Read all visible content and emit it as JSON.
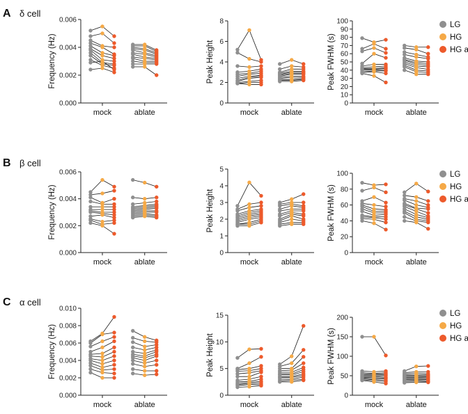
{
  "colors": {
    "LG": "#8f8f8f",
    "HG": "#f5a947",
    "HG_ablate": "#ed5a2b"
  },
  "legend": [
    "LG",
    "HG",
    "HG ablate"
  ],
  "categories": [
    "mock",
    "ablate"
  ],
  "rows": [
    {
      "letter": "A",
      "title": "δ cell",
      "panels": [
        {
          "ylabel": "Frequency (Hz)",
          "ylim": [
            0,
            0.006
          ],
          "yticks": [
            0,
            0.002,
            0.004,
            0.006
          ],
          "ytick_labels": [
            "0.000",
            "0.002",
            "0.004",
            "0.006"
          ],
          "mock": {
            "LG": [
              0.0052,
              0.0048,
              0.0045,
              0.0043,
              0.0041,
              0.0039,
              0.0038,
              0.0036,
              0.0034,
              0.0031,
              0.0029,
              0.0024
            ],
            "HG": [
              0.0055,
              0.005,
              0.0041,
              0.004,
              0.0036,
              0.0034,
              0.0031,
              0.0029,
              0.0028,
              0.0027,
              0.003,
              0.0025
            ],
            "HG_ablate": [
              0.0048,
              0.0043,
              0.004,
              0.0035,
              0.0034,
              0.0032,
              0.003,
              0.0028,
              0.0027,
              0.0025,
              0.0024,
              0.0022
            ]
          },
          "ablate": {
            "LG": [
              0.0042,
              0.0041,
              0.004,
              0.0039,
              0.0038,
              0.0036,
              0.0035,
              0.0033,
              0.0032,
              0.003,
              0.0028,
              0.0026
            ],
            "HG": [
              0.0042,
              0.0041,
              0.0039,
              0.0038,
              0.0036,
              0.0035,
              0.0033,
              0.0032,
              0.003,
              0.0029,
              0.0028,
              0.0026
            ],
            "HG_ablate": [
              0.0038,
              0.0037,
              0.0036,
              0.0035,
              0.0034,
              0.0033,
              0.0032,
              0.0031,
              0.003,
              0.0029,
              0.0028,
              0.002
            ]
          }
        },
        {
          "ylabel": "Peak Height",
          "ylim": [
            0,
            8
          ],
          "yticks": [
            0,
            2,
            4,
            6,
            8
          ],
          "ytick_labels": [
            "0",
            "2",
            "4",
            "6",
            "8"
          ],
          "mock": {
            "LG": [
              5.2,
              4.9,
              3.6,
              3.0,
              2.8,
              2.6,
              2.4,
              2.2,
              2.1,
              2.0,
              1.9,
              1.9
            ],
            "HG": [
              7.1,
              4.3,
              3.5,
              3.1,
              2.9,
              2.8,
              2.6,
              2.5,
              2.4,
              2.1,
              2.0,
              1.8
            ],
            "HG_ablate": [
              4.2,
              4.0,
              3.6,
              3.3,
              3.1,
              2.9,
              2.7,
              2.6,
              2.5,
              2.2,
              2.0,
              1.8
            ]
          },
          "ablate": {
            "LG": [
              3.8,
              3.3,
              3.0,
              2.9,
              2.8,
              2.7,
              2.6,
              2.5,
              2.4,
              2.3,
              2.2,
              2.1
            ],
            "HG": [
              4.2,
              3.6,
              3.3,
              3.1,
              3.0,
              2.9,
              2.8,
              2.6,
              2.5,
              2.3,
              2.2,
              2.1
            ],
            "HG_ablate": [
              3.8,
              3.5,
              3.3,
              3.1,
              3.0,
              2.9,
              2.8,
              2.6,
              2.5,
              2.4,
              2.3,
              2.2
            ]
          }
        },
        {
          "ylabel": "Peak FWHM (s)",
          "ylim": [
            0,
            100
          ],
          "yticks": [
            0,
            10,
            20,
            30,
            40,
            50,
            60,
            70,
            80,
            90,
            100
          ],
          "ytick_labels": [
            "0",
            "10",
            "20",
            "30",
            "40",
            "50",
            "60",
            "70",
            "80",
            "90",
            "100"
          ],
          "mock": {
            "LG": [
              79,
              66,
              63,
              48,
              45,
              43,
              42,
              41,
              40,
              38,
              37,
              36
            ],
            "HG": [
              74,
              72,
              67,
              60,
              47,
              44,
              42,
              41,
              40,
              39,
              38,
              33
            ],
            "HG_ablate": [
              77,
              66,
              61,
              55,
              47,
              45,
              43,
              42,
              40,
              39,
              36,
              25
            ]
          },
          "ablate": {
            "LG": [
              70,
              67,
              62,
              59,
              55,
              53,
              52,
              50,
              48,
              46,
              44,
              40
            ],
            "HG": [
              68,
              65,
              59,
              56,
              51,
              49,
              47,
              45,
              43,
              40,
              38,
              35
            ],
            "HG_ablate": [
              68,
              60,
              56,
              54,
              50,
              48,
              46,
              44,
              41,
              39,
              37,
              35
            ]
          }
        }
      ]
    },
    {
      "letter": "B",
      "title": "β cell",
      "panels": [
        {
          "ylabel": "Frequency (Hz)",
          "ylim": [
            0,
            0.006
          ],
          "yticks": [
            0,
            0.002,
            0.004,
            0.006
          ],
          "ytick_labels": [
            "0.000",
            "0.002",
            "0.004",
            "0.006"
          ],
          "mock": {
            "LG": [
              0.0045,
              0.0043,
              0.0041,
              0.0038,
              0.0034,
              0.0032,
              0.0031,
              0.003,
              0.0027,
              0.0025,
              0.0024,
              0.0022
            ],
            "HG": [
              0.0054,
              0.0044,
              0.0037,
              0.0036,
              0.0034,
              0.0032,
              0.003,
              0.0029,
              0.0028,
              0.0023,
              0.0021,
              0.002
            ],
            "HG_ablate": [
              0.0049,
              0.0046,
              0.004,
              0.0036,
              0.0034,
              0.0032,
              0.003,
              0.0028,
              0.0026,
              0.0024,
              0.0022,
              0.0014
            ]
          },
          "ablate": {
            "LG": [
              0.0054,
              0.0041,
              0.0036,
              0.0034,
              0.0033,
              0.0032,
              0.0031,
              0.003,
              0.0029,
              0.0028,
              0.0027,
              0.0026
            ],
            "HG": [
              0.0052,
              0.004,
              0.0037,
              0.0035,
              0.0034,
              0.0033,
              0.0032,
              0.0031,
              0.003,
              0.0029,
              0.0028,
              0.0027
            ],
            "HG_ablate": [
              0.0049,
              0.0041,
              0.0038,
              0.0036,
              0.0035,
              0.0034,
              0.0033,
              0.0031,
              0.003,
              0.0028,
              0.0027,
              0.0026
            ]
          }
        },
        {
          "ylabel": "Peak Height",
          "ylim": [
            0,
            5
          ],
          "yticks": [
            0,
            1,
            2,
            3,
            4,
            5
          ],
          "ytick_labels": [
            "0",
            "1",
            "2",
            "3",
            "4",
            "5"
          ],
          "mock": {
            "LG": [
              2.8,
              2.6,
              2.5,
              2.3,
              2.2,
              2.1,
              2.0,
              1.9,
              1.8,
              1.7,
              1.7,
              1.6
            ],
            "HG": [
              4.2,
              2.9,
              2.7,
              2.5,
              2.4,
              2.3,
              2.2,
              2.1,
              2.0,
              1.8,
              1.7,
              1.6
            ],
            "HG_ablate": [
              3.4,
              3.0,
              2.8,
              2.6,
              2.5,
              2.4,
              2.3,
              2.2,
              2.1,
              2.0,
              1.9,
              1.8
            ]
          },
          "ablate": {
            "LG": [
              3.0,
              2.9,
              2.8,
              2.6,
              2.5,
              2.3,
              2.2,
              2.0,
              1.9,
              1.8,
              1.7,
              1.6
            ],
            "HG": [
              3.2,
              3.0,
              2.9,
              2.8,
              2.6,
              2.5,
              2.4,
              2.3,
              2.2,
              2.0,
              1.8,
              1.7
            ],
            "HG_ablate": [
              3.5,
              3.0,
              2.8,
              2.7,
              2.6,
              2.5,
              2.3,
              2.2,
              2.0,
              1.9,
              1.8,
              1.7
            ]
          }
        },
        {
          "ylabel": "Peak FWHM (s)",
          "ylim": [
            0,
            100
          ],
          "yticks": [
            0,
            20,
            40,
            60,
            80,
            100
          ],
          "ytick_labels": [
            "0",
            "20",
            "40",
            "60",
            "80",
            "100"
          ],
          "mock": {
            "LG": [
              88,
              78,
              65,
              62,
              60,
              58,
              55,
              52,
              47,
              45,
              43,
              40
            ],
            "HG": [
              85,
              82,
              70,
              60,
              55,
              52,
              50,
              47,
              45,
              44,
              42,
              37
            ],
            "HG_ablate": [
              86,
              76,
              63,
              58,
              54,
              52,
              50,
              48,
              45,
              42,
              38,
              29
            ]
          },
          "ablate": {
            "LG": [
              76,
              72,
              68,
              66,
              62,
              60,
              58,
              55,
              52,
              50,
              45,
              40
            ],
            "HG": [
              87,
              70,
              65,
              60,
              56,
              55,
              52,
              48,
              45,
              42,
              40,
              38
            ],
            "HG_ablate": [
              77,
              65,
              60,
              57,
              55,
              50,
              46,
              44,
              42,
              40,
              38,
              30
            ]
          }
        }
      ]
    },
    {
      "letter": "C",
      "title": "α cell",
      "panels": [
        {
          "ylabel": "Frequency (Hz)",
          "ylim": [
            0,
            0.01
          ],
          "yticks": [
            0,
            0.002,
            0.004,
            0.006,
            0.008,
            0.01
          ],
          "ytick_labels": [
            "0.000",
            "0.002",
            "0.004",
            "0.006",
            "0.008",
            "0.010"
          ],
          "mock": {
            "LG": [
              0.0062,
              0.006,
              0.0056,
              0.005,
              0.0047,
              0.0045,
              0.0042,
              0.004,
              0.0037,
              0.0034,
              0.003,
              0.0026
            ],
            "HG": [
              0.0071,
              0.007,
              0.0062,
              0.0055,
              0.0048,
              0.0044,
              0.004,
              0.0036,
              0.0032,
              0.0029,
              0.0026,
              0.002
            ],
            "HG_ablate": [
              0.009,
              0.0072,
              0.0067,
              0.0062,
              0.0055,
              0.005,
              0.0045,
              0.004,
              0.0035,
              0.003,
              0.0025,
              0.002
            ]
          },
          "ablate": {
            "LG": [
              0.0074,
              0.0066,
              0.0061,
              0.0055,
              0.005,
              0.0047,
              0.0045,
              0.0043,
              0.004,
              0.0036,
              0.003,
              0.0025
            ],
            "HG": [
              0.0067,
              0.0062,
              0.0056,
              0.0052,
              0.0048,
              0.0045,
              0.0043,
              0.004,
              0.0037,
              0.0033,
              0.0028,
              0.0023
            ],
            "HG_ablate": [
              0.0063,
              0.0061,
              0.0058,
              0.0055,
              0.0052,
              0.005,
              0.0047,
              0.0045,
              0.004,
              0.0035,
              0.0028,
              0.0024
            ]
          }
        },
        {
          "ylabel": "Peak Height",
          "ylim": [
            0,
            15
          ],
          "yticks": [
            0,
            5,
            10,
            15
          ],
          "ytick_labels": [
            "0",
            "5",
            "10",
            "15"
          ],
          "mock": {
            "LG": [
              7.0,
              5.0,
              4.8,
              4.5,
              4.0,
              3.5,
              2.8,
              2.5,
              2.2,
              2.0,
              1.8,
              1.5
            ],
            "HG": [
              8.6,
              6.0,
              5.0,
              4.6,
              4.2,
              3.5,
              3.0,
              2.6,
              2.4,
              2.2,
              2.0,
              1.6
            ],
            "HG_ablate": [
              8.7,
              7.2,
              5.5,
              5.0,
              4.6,
              4.3,
              3.5,
              3.0,
              2.6,
              2.3,
              2.0,
              1.8
            ]
          },
          "ablate": {
            "LG": [
              5.8,
              5.4,
              5.0,
              4.6,
              4.3,
              4.0,
              3.8,
              3.5,
              3.3,
              3.0,
              2.7,
              2.5
            ],
            "HG": [
              7.3,
              6.0,
              5.0,
              4.7,
              4.3,
              4.0,
              3.8,
              3.5,
              3.3,
              3.0,
              2.8,
              2.5
            ],
            "HG_ablate": [
              13.0,
              8.5,
              7.2,
              6.0,
              5.2,
              4.8,
              4.4,
              4.0,
              3.7,
              3.4,
              3.0,
              2.8
            ]
          }
        },
        {
          "ylabel": "Peak FWHM (s)",
          "ylim": [
            0,
            200
          ],
          "yticks": [
            0,
            50,
            100,
            150,
            200
          ],
          "ytick_labels": [
            "0",
            "50",
            "100",
            "150",
            "200"
          ],
          "mock": {
            "LG": [
              150,
              62,
              58,
              55,
              52,
              50,
              48,
              46,
              44,
              42,
              40,
              38
            ],
            "HG": [
              150,
              60,
              56,
              54,
              52,
              50,
              48,
              45,
              42,
              40,
              37,
              34
            ],
            "HG_ablate": [
              102,
              62,
              58,
              55,
              52,
              50,
              46,
              44,
              42,
              38,
              35,
              30
            ]
          },
          "ablate": {
            "LG": [
              62,
              58,
              55,
              52,
              50,
              48,
              45,
              43,
              40,
              38,
              35,
              32
            ],
            "HG": [
              74,
              60,
              56,
              52,
              50,
              48,
              45,
              43,
              40,
              38,
              36,
              33
            ],
            "HG_ablate": [
              75,
              60,
              55,
              52,
              50,
              47,
              45,
              42,
              40,
              37,
              35,
              33
            ]
          }
        }
      ]
    }
  ]
}
